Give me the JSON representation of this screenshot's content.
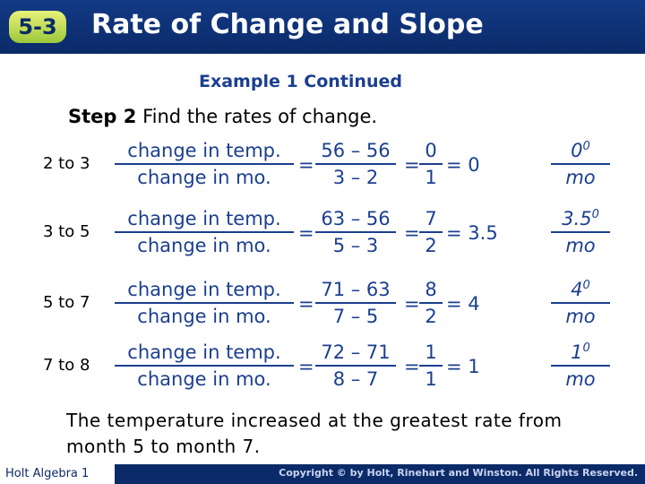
{
  "header": {
    "badge": "5-3",
    "title": "Rate of Change and Slope"
  },
  "subtitle": "Example 1 Continued",
  "step": {
    "label": "Step 2",
    "text": "Find the rates of change."
  },
  "fraction_numerator": "change in temp.",
  "fraction_denominator": "change in mo.",
  "rows": [
    {
      "label": "2 to 3",
      "num": "56 – 56",
      "den": "3 – 2",
      "num2": "0",
      "den2": "1",
      "result": "0",
      "rate": "0",
      "rate_sup": "0",
      "rate_den": "mo"
    },
    {
      "label": "3 to 5",
      "num": "63 – 56",
      "den": "5 – 3",
      "num2": "7",
      "den2": "2",
      "result": "3.5",
      "rate": "3.5",
      "rate_sup": "0",
      "rate_den": "mo"
    },
    {
      "label": "5 to 7",
      "num": "71 – 63",
      "den": "7 – 5",
      "num2": "8",
      "den2": "2",
      "result": "4",
      "rate": "4",
      "rate_sup": "0",
      "rate_den": "mo"
    },
    {
      "label": "7 to 8",
      "num": "72 – 71",
      "den": "8 – 7",
      "num2": "1",
      "den2": "1",
      "result": "1",
      "rate": "1",
      "rate_sup": "0",
      "rate_den": "mo"
    }
  ],
  "conclusion": "The temperature increased at the greatest rate from month 5 to month 7.",
  "footer": {
    "left": "Holt Algebra 1",
    "right": "Copyright © by Holt, Rinehart and Winston. All Rights Reserved."
  }
}
